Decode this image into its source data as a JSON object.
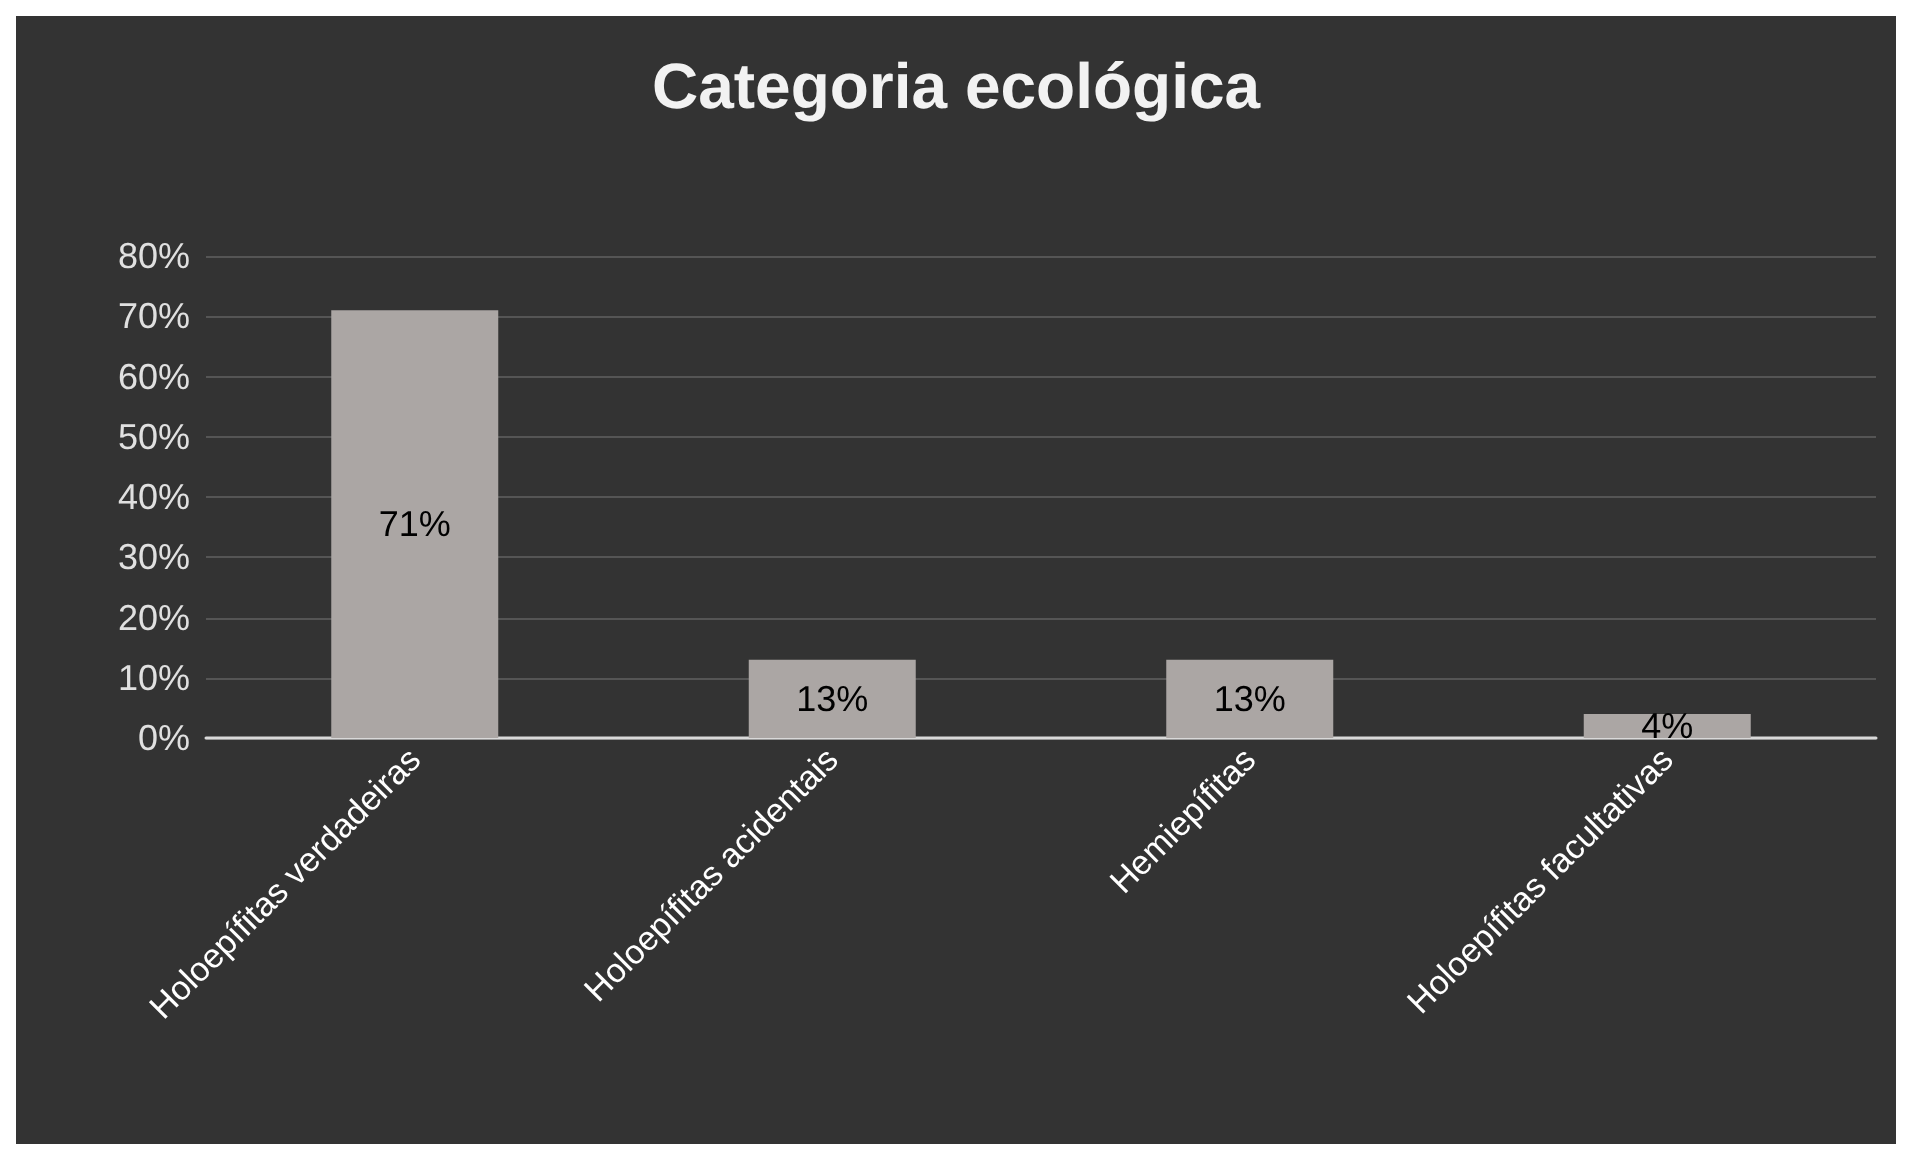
{
  "chart_data": {
    "type": "bar",
    "title": "Categoria ecológica",
    "categories": [
      "Holoepífitas verdadeiras",
      "Holoepífitas acidentais",
      "Hemiepífitas",
      "Holoepífitas facultativas"
    ],
    "values": [
      71,
      13,
      13,
      4
    ],
    "color": "#aba6a4",
    "value_labels": [
      "71%",
      "13%",
      "13%",
      "4%"
    ],
    "ylim": [
      0,
      80
    ],
    "yticks": [
      {
        "value": 0,
        "label": "0%"
      },
      {
        "value": 10,
        "label": "10%"
      },
      {
        "value": 20,
        "label": "20%"
      },
      {
        "value": 30,
        "label": "30%"
      },
      {
        "value": 40,
        "label": "40%"
      },
      {
        "value": 50,
        "label": "50%"
      },
      {
        "value": 60,
        "label": "60%"
      },
      {
        "value": 70,
        "label": "70%"
      },
      {
        "value": 80,
        "label": "80%"
      }
    ],
    "grid": true
  }
}
